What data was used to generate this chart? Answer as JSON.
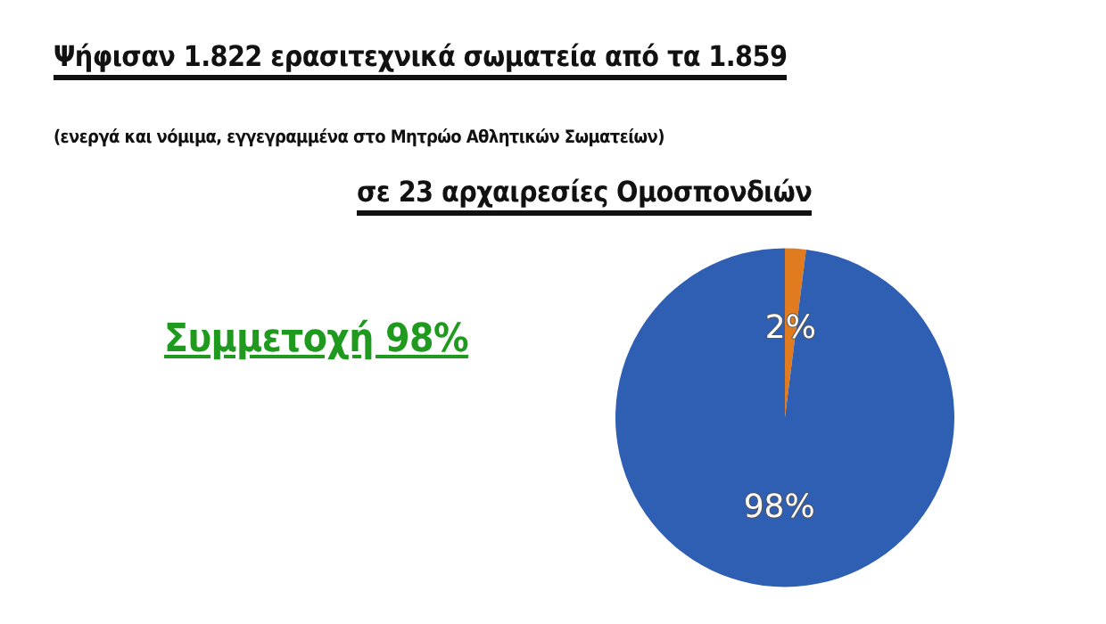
{
  "chart_data": {
    "type": "pie",
    "title": "Ψήφισαν 1.822 ερασιτεχνικά σωματεία από τα 1.859",
    "subtitle": "(ενεργά και νόμιμα, εγγεγραμμένα στο Μητρώο Αθλητικών Σωματείων)",
    "annotations": [
      "σε 23 αρχαιρεσίες Ομοσπονδιών",
      "Συμμετοχή 98%"
    ],
    "categories": [
      null,
      null
    ],
    "values": [
      2,
      98
    ],
    "colors": [
      "#e07b1f",
      "#2f5fb3"
    ],
    "value_labels": [
      "2%",
      "98%"
    ]
  }
}
